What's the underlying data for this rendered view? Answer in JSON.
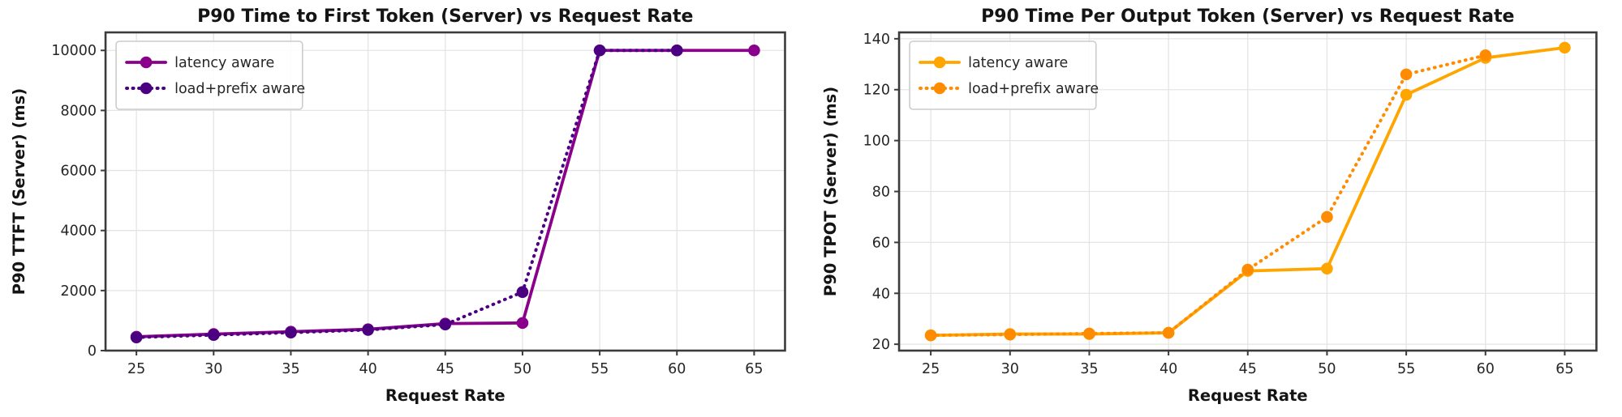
{
  "figure": {
    "background": "#ffffff",
    "grid_color": "#e4e4e4",
    "spine_color": "#3b3b3b",
    "tick_label_color": "#262626",
    "title_color": "#141414",
    "legend_border_color": "#cccccc",
    "legend_background": "#ffffff"
  },
  "chart_data": [
    {
      "id": "ttft",
      "type": "line",
      "title": "P90 Time to First Token (Server) vs Request Rate",
      "xlabel": "Request Rate",
      "ylabel": "P90 TTFT (Server) (ms)",
      "xticks": [
        25,
        30,
        35,
        40,
        45,
        50,
        55,
        60,
        65
      ],
      "yticks": [
        0,
        2000,
        4000,
        6000,
        8000,
        10000
      ],
      "xlim": [
        23,
        67
      ],
      "ylim": [
        0,
        10600
      ],
      "grid": true,
      "legend_position": "upper-left",
      "series": [
        {
          "name": "latency aware",
          "color": "#8B008B",
          "style": "solid",
          "x": [
            25,
            30,
            35,
            40,
            45,
            50,
            55,
            60,
            65
          ],
          "y": [
            460,
            550,
            630,
            710,
            900,
            920,
            10000,
            10000,
            10000
          ]
        },
        {
          "name": "load+prefix aware",
          "color": "#4B0082",
          "style": "dotted",
          "x": [
            25,
            30,
            35,
            40,
            45,
            50,
            55,
            60
          ],
          "y": [
            440,
            520,
            600,
            690,
            870,
            1950,
            10000,
            10000
          ]
        }
      ]
    },
    {
      "id": "tpot",
      "type": "line",
      "title": "P90 Time Per Output Token (Server) vs Request Rate",
      "xlabel": "Request Rate",
      "ylabel": "P90 TPOT (Server) (ms)",
      "xticks": [
        25,
        30,
        35,
        40,
        45,
        50,
        55,
        60,
        65
      ],
      "yticks": [
        20,
        40,
        60,
        80,
        100,
        120,
        140
      ],
      "xlim": [
        23,
        67
      ],
      "ylim": [
        17.5,
        142.5
      ],
      "grid": true,
      "legend_position": "upper-left",
      "series": [
        {
          "name": "latency aware",
          "color": "#FFA500",
          "style": "solid",
          "x": [
            25,
            30,
            35,
            40,
            45,
            50,
            55,
            60,
            65
          ],
          "y": [
            23.5,
            24,
            24,
            24.5,
            48.8,
            49.7,
            118,
            132.5,
            136.5
          ]
        },
        {
          "name": "load+prefix aware",
          "color": "#FF8C00",
          "style": "dotted",
          "x": [
            25,
            30,
            35,
            40,
            45,
            50,
            55,
            60
          ],
          "y": [
            23.5,
            23.8,
            24.2,
            24.5,
            49.3,
            70,
            126,
            133.5
          ]
        }
      ]
    }
  ]
}
